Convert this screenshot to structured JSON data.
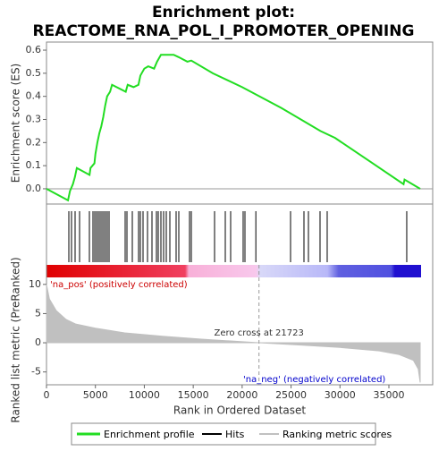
{
  "chart_data": [
    {
      "type": "line",
      "title": "Enrichment plot:",
      "subtitle": "REACTOME_RNA_POL_I_PROMOTER_OPENING",
      "y_label": "Enrichment score (ES)",
      "x": [
        0,
        2200,
        2400,
        2700,
        2900,
        3100,
        4400,
        4500,
        4900,
        5000,
        5200,
        5400,
        5600,
        5800,
        6000,
        6200,
        6500,
        6700,
        8100,
        8300,
        8900,
        9400,
        9600,
        10000,
        10400,
        11000,
        11300,
        11700,
        12300,
        13000,
        13500,
        14400,
        14800,
        17000,
        20000,
        24000,
        28000,
        29500,
        33000,
        36500,
        36600,
        38200
      ],
      "series": [
        {
          "name": "Enrichment profile",
          "color": "#22dd22",
          "values": [
            0,
            -0.05,
            -0.01,
            0.02,
            0.05,
            0.09,
            0.06,
            0.09,
            0.11,
            0.15,
            0.2,
            0.24,
            0.27,
            0.31,
            0.36,
            0.4,
            0.42,
            0.45,
            0.42,
            0.45,
            0.44,
            0.45,
            0.49,
            0.52,
            0.53,
            0.52,
            0.55,
            0.58,
            0.58,
            0.58,
            0.57,
            0.55,
            0.555,
            0.5,
            0.44,
            0.35,
            0.25,
            0.22,
            0.12,
            0.02,
            0.04,
            0.0
          ]
        }
      ],
      "ylim": [
        -0.066,
        0.635
      ],
      "yticks": [
        {
          "value": 0,
          "label": "0.0"
        },
        0.1,
        0.2,
        0.3,
        0.4,
        0.5,
        0.6
      ],
      "xlim": [
        0,
        39478
      ]
    },
    {
      "type": "hits",
      "name": "Hits",
      "color": "#000000",
      "x": [
        2285,
        2559,
        2924,
        3381,
        4386,
        4752,
        4935,
        5117,
        5300,
        5483,
        5666,
        5848,
        6031,
        6214,
        6397,
        8041,
        8224,
        8772,
        9412,
        9595,
        9869,
        10326,
        10783,
        11240,
        11422,
        11697,
        11971,
        12245,
        12610,
        13250,
        13524,
        14621,
        14804,
        17179,
        18276,
        18824,
        20103,
        20286,
        21400,
        24947,
        26318,
        26775,
        27962,
        28693,
        36826
      ],
      "xlim": [
        0,
        39478
      ]
    },
    {
      "type": "area",
      "y_label": "Ranked list metric (PreRanked)",
      "x_label": "Rank in Ordered Dataset",
      "x": [
        0,
        300,
        1000,
        2000,
        3000,
        5000,
        8000,
        12000,
        16000,
        21723,
        26000,
        30000,
        34000,
        36000,
        37500,
        38000,
        38200
      ],
      "series": [
        {
          "name": "Ranking metric scores",
          "color": "#c0c0c0",
          "values": [
            10,
            7.5,
            5.5,
            4,
            3.2,
            2.5,
            1.7,
            1.1,
            0.6,
            0,
            -0.4,
            -0.8,
            -1.4,
            -2,
            -3,
            -4.5,
            -6.8
          ]
        }
      ],
      "ylim": [
        -7.2,
        11.2
      ],
      "yticks": [
        10,
        5,
        0,
        -5
      ],
      "xlim": [
        0,
        39478
      ],
      "xticks": [
        0,
        5000,
        10000,
        15000,
        20000,
        25000,
        30000,
        35000
      ],
      "pos_label": "'na_pos' (positively correlated)",
      "neg_label": "'na_neg' (negatively correlated)",
      "zero_cross_label": "Zero cross at 21723",
      "zero_cross": 21723
    }
  ]
}
